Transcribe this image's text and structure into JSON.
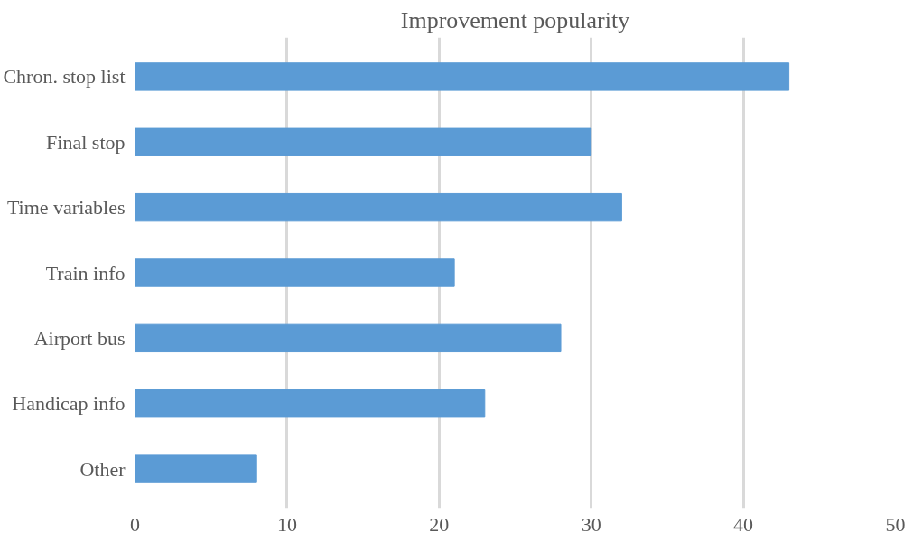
{
  "chart_data": {
    "type": "bar",
    "orientation": "horizontal",
    "title": "Improvement popularity",
    "categories": [
      "Chron. stop list",
      "Final stop",
      "Time variables",
      "Train info",
      "Airport bus",
      "Handicap info",
      "Other"
    ],
    "values": [
      43,
      30,
      32,
      21,
      28,
      23,
      8
    ],
    "color": "#5b9bd5",
    "xlim": [
      0,
      50
    ],
    "xticks": [
      0,
      10,
      20,
      30,
      40,
      50
    ],
    "grid": "x"
  }
}
